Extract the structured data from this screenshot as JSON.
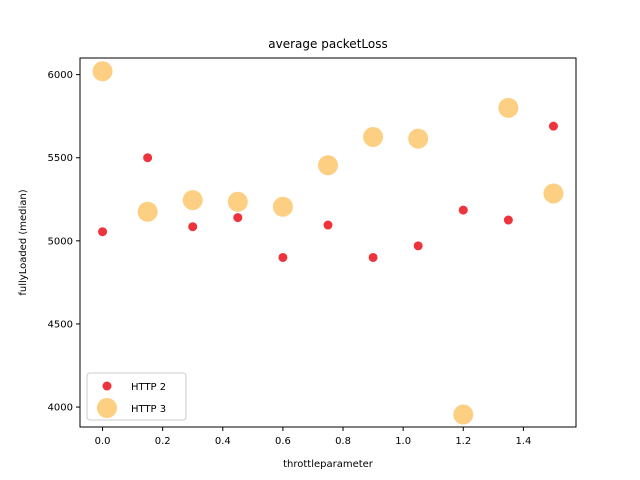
{
  "chart_data": {
    "type": "scatter",
    "title": "average packetLoss",
    "xlabel": "throttleparameter",
    "ylabel": "fullyLoaded (median)",
    "xlim": [
      -0.075,
      1.575
    ],
    "ylim": [
      3880,
      6100
    ],
    "xticks": [
      0.0,
      0.2,
      0.4,
      0.6,
      0.8,
      1.0,
      1.2,
      1.4
    ],
    "xtick_labels": [
      "0.0",
      "0.2",
      "0.4",
      "0.6",
      "0.8",
      "1.0",
      "1.2",
      "1.4"
    ],
    "yticks": [
      4000,
      4500,
      5000,
      5500,
      6000
    ],
    "ytick_labels": [
      "4000",
      "4500",
      "5000",
      "5500",
      "6000"
    ],
    "grid": false,
    "legend_position": "lower-left",
    "series": [
      {
        "name": "HTTP 2",
        "color": "#e8000b",
        "marker": "small-circle",
        "x": [
          0.0,
          0.15,
          0.3,
          0.45,
          0.6,
          0.75,
          0.9,
          1.05,
          1.2,
          1.35,
          1.5
        ],
        "y": [
          5055,
          5500,
          5085,
          5140,
          4900,
          5095,
          4900,
          4970,
          5185,
          5125,
          5690
        ]
      },
      {
        "name": "HTTP 3",
        "color": "#fbb540",
        "marker": "large-circle",
        "x": [
          0.0,
          0.15,
          0.3,
          0.45,
          0.6,
          0.75,
          0.9,
          1.05,
          1.2,
          1.35,
          1.5
        ],
        "y": [
          6020,
          5175,
          5245,
          5235,
          5205,
          5455,
          5625,
          5615,
          3955,
          5800,
          5285
        ]
      }
    ]
  }
}
